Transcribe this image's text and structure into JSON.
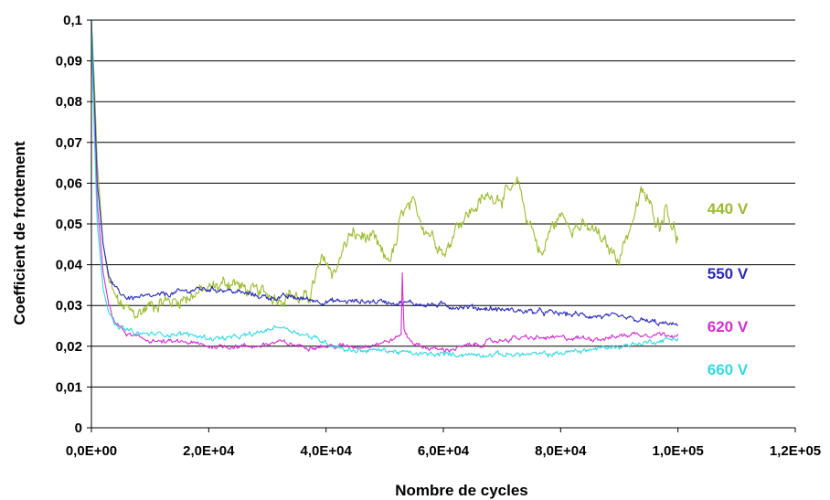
{
  "chart_data": {
    "type": "line",
    "title": "",
    "xlabel": "Nombre de cycles",
    "ylabel": "Coefficient de frottement",
    "xlim": [
      0,
      120000
    ],
    "ylim": [
      0,
      0.1
    ],
    "x_ticks": [
      0,
      20000,
      40000,
      60000,
      80000,
      100000,
      120000
    ],
    "x_tick_labels": [
      "0,0E+00",
      "2,0E+04",
      "4,0E+04",
      "6,0E+04",
      "8,0E+04",
      "1,0E+05",
      "1,2E+05"
    ],
    "y_ticks": [
      0,
      0.01,
      0.02,
      0.03,
      0.04,
      0.05,
      0.06,
      0.07,
      0.08,
      0.09,
      0.1
    ],
    "y_tick_labels": [
      "0",
      "0,01",
      "0,02",
      "0,03",
      "0,04",
      "0,05",
      "0,06",
      "0,07",
      "0,08",
      "0,09",
      "0,1"
    ],
    "grid": "horizontal",
    "series": [
      {
        "name": "440 V",
        "color": "#9bbb2f",
        "points": [
          [
            0,
            0.1
          ],
          [
            500,
            0.085
          ],
          [
            1000,
            0.065
          ],
          [
            2000,
            0.045
          ],
          [
            3000,
            0.036
          ],
          [
            4000,
            0.032
          ],
          [
            5000,
            0.03
          ],
          [
            6000,
            0.029
          ],
          [
            7000,
            0.028
          ],
          [
            8000,
            0.028
          ],
          [
            9000,
            0.029
          ],
          [
            10000,
            0.03
          ],
          [
            12000,
            0.031
          ],
          [
            14000,
            0.031
          ],
          [
            16000,
            0.032
          ],
          [
            18000,
            0.033
          ],
          [
            20000,
            0.034
          ],
          [
            22000,
            0.035
          ],
          [
            24000,
            0.036
          ],
          [
            26000,
            0.034
          ],
          [
            28000,
            0.033
          ],
          [
            30000,
            0.033
          ],
          [
            32000,
            0.032
          ],
          [
            34000,
            0.033
          ],
          [
            36000,
            0.031
          ],
          [
            37000,
            0.032
          ],
          [
            38000,
            0.036
          ],
          [
            39000,
            0.04
          ],
          [
            40000,
            0.041
          ],
          [
            41000,
            0.038
          ],
          [
            42000,
            0.04
          ],
          [
            43000,
            0.044
          ],
          [
            44000,
            0.047
          ],
          [
            46000,
            0.047
          ],
          [
            48000,
            0.046
          ],
          [
            49000,
            0.044
          ],
          [
            50000,
            0.041
          ],
          [
            51000,
            0.042
          ],
          [
            52000,
            0.045
          ],
          [
            53000,
            0.053
          ],
          [
            55000,
            0.054
          ],
          [
            57000,
            0.049
          ],
          [
            59000,
            0.046
          ],
          [
            60000,
            0.043
          ],
          [
            61000,
            0.044
          ],
          [
            62000,
            0.05
          ],
          [
            64000,
            0.052
          ],
          [
            66000,
            0.055
          ],
          [
            68000,
            0.057
          ],
          [
            70000,
            0.057
          ],
          [
            72000,
            0.058
          ],
          [
            73000,
            0.06
          ],
          [
            74000,
            0.052
          ],
          [
            75000,
            0.05
          ],
          [
            76000,
            0.045
          ],
          [
            77000,
            0.042
          ],
          [
            78000,
            0.048
          ],
          [
            80000,
            0.052
          ],
          [
            82000,
            0.05
          ],
          [
            84000,
            0.049
          ],
          [
            86000,
            0.048
          ],
          [
            88000,
            0.044
          ],
          [
            90000,
            0.042
          ],
          [
            92000,
            0.05
          ],
          [
            94000,
            0.058
          ],
          [
            95000,
            0.055
          ],
          [
            96000,
            0.052
          ],
          [
            97000,
            0.05
          ],
          [
            98000,
            0.055
          ],
          [
            99000,
            0.05
          ],
          [
            100000,
            0.046
          ]
        ],
        "jitter": 0.0024
      },
      {
        "name": "550 V",
        "color": "#2a2ab8",
        "points": [
          [
            0,
            0.1
          ],
          [
            500,
            0.08
          ],
          [
            1000,
            0.06
          ],
          [
            2000,
            0.045
          ],
          [
            3000,
            0.037
          ],
          [
            4000,
            0.034
          ],
          [
            6000,
            0.032
          ],
          [
            8000,
            0.032
          ],
          [
            10000,
            0.032
          ],
          [
            14000,
            0.033
          ],
          [
            18000,
            0.034
          ],
          [
            22000,
            0.034
          ],
          [
            26000,
            0.033
          ],
          [
            30000,
            0.032
          ],
          [
            34000,
            0.032
          ],
          [
            40000,
            0.031
          ],
          [
            50000,
            0.031
          ],
          [
            60000,
            0.03
          ],
          [
            70000,
            0.029
          ],
          [
            80000,
            0.028
          ],
          [
            90000,
            0.027
          ],
          [
            95000,
            0.026
          ],
          [
            100000,
            0.025
          ]
        ],
        "jitter": 0.0009
      },
      {
        "name": "620 V",
        "color": "#d12fcf",
        "points": [
          [
            0,
            0.095
          ],
          [
            500,
            0.075
          ],
          [
            1000,
            0.055
          ],
          [
            2000,
            0.038
          ],
          [
            3000,
            0.03
          ],
          [
            4000,
            0.026
          ],
          [
            6000,
            0.023
          ],
          [
            8000,
            0.022
          ],
          [
            12000,
            0.021
          ],
          [
            16000,
            0.021
          ],
          [
            20000,
            0.02
          ],
          [
            24000,
            0.02
          ],
          [
            28000,
            0.02
          ],
          [
            32000,
            0.021
          ],
          [
            36000,
            0.02
          ],
          [
            40000,
            0.02
          ],
          [
            46000,
            0.02
          ],
          [
            50000,
            0.021
          ],
          [
            52000,
            0.022
          ],
          [
            52800,
            0.023
          ],
          [
            53000,
            0.038
          ],
          [
            53300,
            0.024
          ],
          [
            54000,
            0.022
          ],
          [
            56000,
            0.02
          ],
          [
            60000,
            0.019
          ],
          [
            64000,
            0.02
          ],
          [
            68000,
            0.021
          ],
          [
            72000,
            0.022
          ],
          [
            76000,
            0.022
          ],
          [
            80000,
            0.022
          ],
          [
            84000,
            0.022
          ],
          [
            88000,
            0.022
          ],
          [
            92000,
            0.023
          ],
          [
            96000,
            0.023
          ],
          [
            100000,
            0.023
          ]
        ],
        "jitter": 0.0008
      },
      {
        "name": "660 V",
        "color": "#35d8e0",
        "points": [
          [
            0,
            0.1
          ],
          [
            500,
            0.072
          ],
          [
            1000,
            0.05
          ],
          [
            2000,
            0.034
          ],
          [
            3000,
            0.028
          ],
          [
            4000,
            0.025
          ],
          [
            6000,
            0.024
          ],
          [
            8000,
            0.023
          ],
          [
            12000,
            0.023
          ],
          [
            16000,
            0.023
          ],
          [
            20000,
            0.022
          ],
          [
            24000,
            0.022
          ],
          [
            28000,
            0.023
          ],
          [
            30000,
            0.024
          ],
          [
            32000,
            0.025
          ],
          [
            34000,
            0.024
          ],
          [
            36000,
            0.023
          ],
          [
            38000,
            0.022
          ],
          [
            40000,
            0.021
          ],
          [
            44000,
            0.019
          ],
          [
            50000,
            0.019
          ],
          [
            56000,
            0.018
          ],
          [
            60000,
            0.018
          ],
          [
            66000,
            0.018
          ],
          [
            72000,
            0.018
          ],
          [
            78000,
            0.018
          ],
          [
            84000,
            0.019
          ],
          [
            90000,
            0.02
          ],
          [
            95000,
            0.021
          ],
          [
            100000,
            0.022
          ]
        ],
        "jitter": 0.0008
      }
    ],
    "labels": [
      {
        "text": "440 V",
        "color": "#9bbb2f",
        "x": 105000,
        "y": 0.0525
      },
      {
        "text": "550 V",
        "color": "#2a2ab8",
        "x": 105000,
        "y": 0.0365
      },
      {
        "text": "620 V",
        "color": "#d12fcf",
        "x": 105000,
        "y": 0.0235
      },
      {
        "text": "660 V",
        "color": "#35d8e0",
        "x": 105000,
        "y": 0.013
      }
    ]
  }
}
